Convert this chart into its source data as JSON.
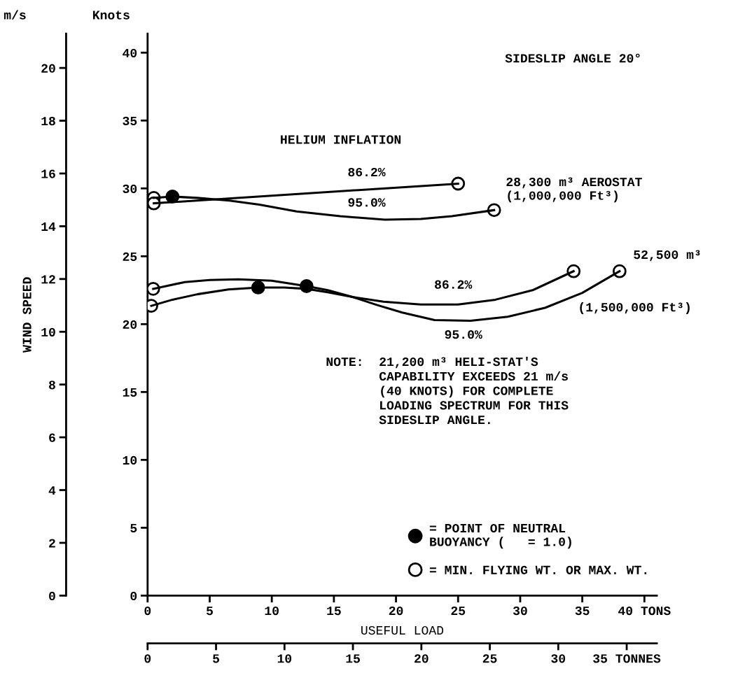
{
  "chart_data": {
    "type": "line",
    "title": "SIDESLIP ANGLE 20°",
    "xlabel": "USEFUL LOAD",
    "ylabel": "Knots",
    "y2label": "m/s",
    "xlim": [
      0,
      41
    ],
    "xticks": [
      0,
      5,
      10,
      15,
      20,
      25,
      30,
      35,
      {
        "value": 40,
        "label": "40 TONS"
      }
    ],
    "x2lim": [
      0,
      37.2
    ],
    "x2ticks": [
      0,
      5,
      10,
      15,
      20,
      25,
      30,
      {
        "value": 35,
        "label": "35 TONNES"
      }
    ],
    "ylim": [
      0,
      41.4
    ],
    "yticks": [
      0,
      5,
      10,
      15,
      20,
      25,
      30,
      35,
      40
    ],
    "y2lim": [
      0,
      21.3
    ],
    "y2ticks": [
      0,
      2,
      4,
      6,
      8,
      10,
      12,
      14,
      16,
      18,
      20
    ],
    "grid": false,
    "legend": "bottom right",
    "line_style": "solid",
    "series": [
      {
        "color": "#000000",
        "x": [
          0.5,
          25.0
        ],
        "values": [
          28.9,
          30.35
        ]
      },
      {
        "color": "#000000",
        "x": [
          0.5,
          2.0,
          4.0,
          6.6,
          9.0,
          12.0,
          15.5,
          19.1,
          22.0,
          24.5,
          27.9
        ],
        "values": [
          29.3,
          29.4,
          29.3,
          29.1,
          28.8,
          28.3,
          27.95,
          27.7,
          27.75,
          27.95,
          28.4
        ]
      },
      {
        "color": "#000000",
        "x": [
          0.45,
          3.0,
          5.0,
          7.3,
          10.0,
          12.8,
          14.5,
          16.5,
          19.0,
          22.0,
          25.0,
          28.0,
          31.0,
          34.3
        ],
        "values": [
          22.6,
          23.1,
          23.25,
          23.3,
          23.2,
          22.8,
          22.5,
          22.0,
          21.65,
          21.45,
          21.45,
          21.8,
          22.5,
          23.9
        ]
      },
      {
        "color": "#000000",
        "x": [
          0.3,
          2.0,
          4.0,
          6.5,
          8.9,
          11.0,
          12.8,
          14.5,
          16.5,
          18.5,
          20.5,
          23.1,
          26.0,
          29.0,
          32.0,
          35.0,
          38.0
        ],
        "values": [
          21.35,
          21.8,
          22.2,
          22.55,
          22.7,
          22.7,
          22.6,
          22.35,
          22.0,
          21.4,
          20.85,
          20.3,
          20.25,
          20.55,
          21.2,
          22.3,
          23.9
        ]
      },
      {
        "type": "scatter",
        "name": "= POINT OF NEUTRAL\nBUOYANCY (   = 1.0)",
        "color": "#000000",
        "marker": "circle",
        "x": [
          2.0,
          8.9,
          12.8
        ],
        "values": [
          29.4,
          22.7,
          22.8
        ]
      },
      {
        "type": "scatter",
        "name": "= MIN. FLYING WT. OR MAX. WT.",
        "color": "#ffffff",
        "marker": "circle",
        "x": [
          0.5,
          0.5,
          25.0,
          27.9,
          0.45,
          0.3,
          34.3,
          38.0
        ],
        "values": [
          29.3,
          28.9,
          30.35,
          28.4,
          22.6,
          21.35,
          23.9,
          23.9
        ]
      }
    ],
    "annotations": [
      "WIND SPEED",
      "HELIUM INFLATION",
      "86.2%",
      "95.0%",
      {
        "text": "28,300 m³ AEROSTAT\n(1,000,000 Ft³)",
        "x": 27.9,
        "y": 28.4
      },
      {
        "text": "52,500 m³",
        "x": 38.0,
        "y": 23.9
      },
      "(1,500,000 Ft³)",
      "86.2%",
      "95.0%",
      "NOTE:  21,200 m³ HELI-STAT'S\n       CAPABILITY EXCEEDS 21 m/s\n       (40 KNOTS) FOR COMPLETE\n       LOADING SPECTRUM FOR THIS\n       SIDESLIP ANGLE."
    ]
  }
}
